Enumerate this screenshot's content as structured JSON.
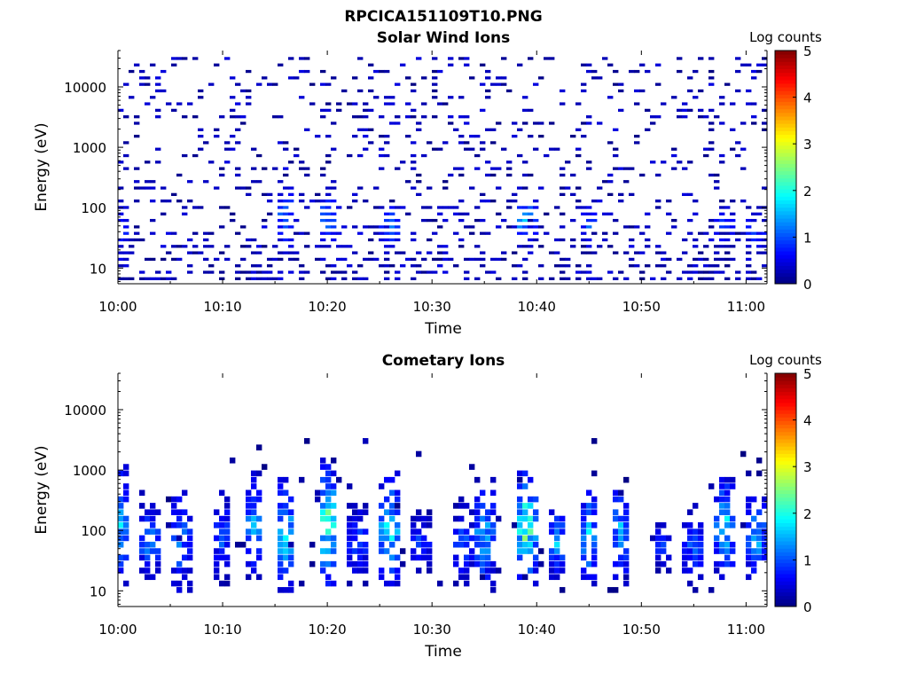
{
  "figure_title": "RPCICA151109T10.PNG",
  "colors": {
    "axes": "#000000",
    "background": "#ffffff"
  },
  "chart_data": [
    {
      "type": "heatmap",
      "title": "Solar Wind Ions",
      "xlabel": "Time",
      "ylabel": "Energy (eV)",
      "xticks": [
        "10:00",
        "10:10",
        "10:20",
        "10:30",
        "10:40",
        "10:50",
        "11:00"
      ],
      "xlim": [
        "10:00",
        "11:02"
      ],
      "y_scale": "log",
      "ylim": [
        5.5,
        40000
      ],
      "yticks": [
        10,
        100,
        1000,
        10000
      ],
      "ytick_labels": [
        "10",
        "100",
        "1000",
        "10000"
      ],
      "colorbar": {
        "label": "Log counts",
        "min": 0,
        "max": 5,
        "ticks": [
          "0",
          "1",
          "2",
          "3",
          "4",
          "5"
        ],
        "colormap": "jet"
      },
      "background_noise": {
        "energy_range": [
          5.5,
          30000
        ],
        "log_counts": [
          0,
          0.5
        ],
        "note": "sparse single counts across all energies"
      },
      "features": [
        {
          "time": "10:00",
          "energy_range": [
            6,
            200
          ],
          "peak_log_counts": 1.2
        },
        {
          "time": "10:16",
          "energy_range": [
            15,
            300
          ],
          "peak_log_counts": 1.5
        },
        {
          "time": "10:20",
          "energy_range": [
            20,
            200
          ],
          "peak_log_counts": 1.6
        },
        {
          "time": "10:26",
          "energy_range": [
            15,
            150
          ],
          "peak_log_counts": 1.4
        },
        {
          "time": "10:39",
          "energy_range": [
            20,
            150
          ],
          "peak_log_counts": 2.0
        },
        {
          "time": "10:45",
          "energy_range": [
            15,
            150
          ],
          "peak_log_counts": 1.2
        },
        {
          "time": "10:58",
          "energy_range": [
            20,
            100
          ],
          "peak_log_counts": 1.3
        },
        {
          "time": "11:01",
          "energy_range": [
            15,
            100
          ],
          "peak_log_counts": 1.2
        }
      ]
    },
    {
      "type": "heatmap",
      "title": "Cometary Ions",
      "xlabel": "Time",
      "ylabel": "Energy (eV)",
      "xticks": [
        "10:00",
        "10:10",
        "10:20",
        "10:30",
        "10:40",
        "10:50",
        "11:00"
      ],
      "xlim": [
        "10:00",
        "11:02"
      ],
      "y_scale": "log",
      "ylim": [
        5.5,
        40000
      ],
      "yticks": [
        10,
        100,
        1000,
        10000
      ],
      "ytick_labels": [
        "10",
        "100",
        "1000",
        "10000"
      ],
      "colorbar": {
        "label": "Log counts",
        "min": 0,
        "max": 5,
        "ticks": [
          "0",
          "1",
          "2",
          "3",
          "4",
          "5"
        ],
        "colormap": "jet"
      },
      "background_noise": {
        "energy_range": [
          8,
          3000
        ],
        "log_counts": [
          0,
          0.3
        ],
        "note": "very sparse isolated counts"
      },
      "features": [
        {
          "time": "10:00",
          "energy_range": [
            10,
            1500
          ],
          "peak_log_counts": 2.0
        },
        {
          "time": "10:03",
          "energy_range": [
            15,
            300
          ],
          "peak_log_counts": 1.8
        },
        {
          "time": "10:06",
          "energy_range": [
            8,
            600
          ],
          "peak_log_counts": 1.6
        },
        {
          "time": "10:10",
          "energy_range": [
            12,
            500
          ],
          "peak_log_counts": 1.3
        },
        {
          "time": "10:13",
          "energy_range": [
            15,
            900
          ],
          "peak_log_counts": 1.8
        },
        {
          "time": "10:16",
          "energy_range": [
            10,
            700
          ],
          "peak_log_counts": 2.3
        },
        {
          "time": "10:20",
          "energy_range": [
            12,
            1500
          ],
          "peak_log_counts": 2.8
        },
        {
          "time": "10:23",
          "energy_range": [
            12,
            300
          ],
          "peak_log_counts": 1.3
        },
        {
          "time": "10:26",
          "energy_range": [
            12,
            900
          ],
          "peak_log_counts": 2.4
        },
        {
          "time": "10:29",
          "energy_range": [
            20,
            200
          ],
          "peak_log_counts": 1.2
        },
        {
          "time": "10:33",
          "energy_range": [
            12,
            300
          ],
          "peak_log_counts": 1.3
        },
        {
          "time": "10:35",
          "energy_range": [
            10,
            700
          ],
          "peak_log_counts": 2.0
        },
        {
          "time": "10:39",
          "energy_range": [
            12,
            900
          ],
          "peak_log_counts": 3.0
        },
        {
          "time": "10:42",
          "energy_range": [
            15,
            250
          ],
          "peak_log_counts": 1.8
        },
        {
          "time": "10:45",
          "energy_range": [
            12,
            500
          ],
          "peak_log_counts": 2.0
        },
        {
          "time": "10:48",
          "energy_range": [
            12,
            700
          ],
          "peak_log_counts": 1.8
        },
        {
          "time": "10:52",
          "energy_range": [
            20,
            150
          ],
          "peak_log_counts": 1.2
        },
        {
          "time": "10:55",
          "energy_range": [
            10,
            300
          ],
          "peak_log_counts": 1.3
        },
        {
          "time": "10:58",
          "energy_range": [
            15,
            800
          ],
          "peak_log_counts": 2.3
        },
        {
          "time": "11:01",
          "energy_range": [
            15,
            400
          ],
          "peak_log_counts": 2.0
        }
      ]
    }
  ]
}
